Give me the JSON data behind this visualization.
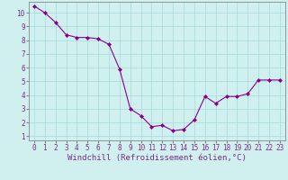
{
  "x": [
    0,
    1,
    2,
    3,
    4,
    5,
    6,
    7,
    8,
    9,
    10,
    11,
    12,
    13,
    14,
    15,
    16,
    17,
    18,
    19,
    20,
    21,
    22,
    23
  ],
  "y": [
    10.5,
    10.0,
    9.3,
    8.4,
    8.2,
    8.2,
    8.1,
    7.7,
    5.9,
    3.0,
    2.5,
    1.7,
    1.8,
    1.4,
    1.5,
    2.2,
    3.9,
    3.4,
    3.9,
    3.9,
    4.1,
    5.1,
    5.1,
    5.1
  ],
  "line_color": "#8B008B",
  "marker": "D",
  "marker_size": 2,
  "bg_color": "#cff0ee",
  "grid_color": "#aadddd",
  "xlabel": "Windchill (Refroidissement éolien,°C)",
  "ylabel": "",
  "xlim": [
    -0.5,
    23.5
  ],
  "ylim": [
    0.7,
    10.8
  ],
  "yticks": [
    1,
    2,
    3,
    4,
    5,
    6,
    7,
    8,
    9,
    10
  ],
  "xticks": [
    0,
    1,
    2,
    3,
    4,
    5,
    6,
    7,
    8,
    9,
    10,
    11,
    12,
    13,
    14,
    15,
    16,
    17,
    18,
    19,
    20,
    21,
    22,
    23
  ],
  "tick_label_fontsize": 5.5,
  "xlabel_fontsize": 6.5,
  "axis_color": "#7B2D8B",
  "spine_color": "#888888"
}
